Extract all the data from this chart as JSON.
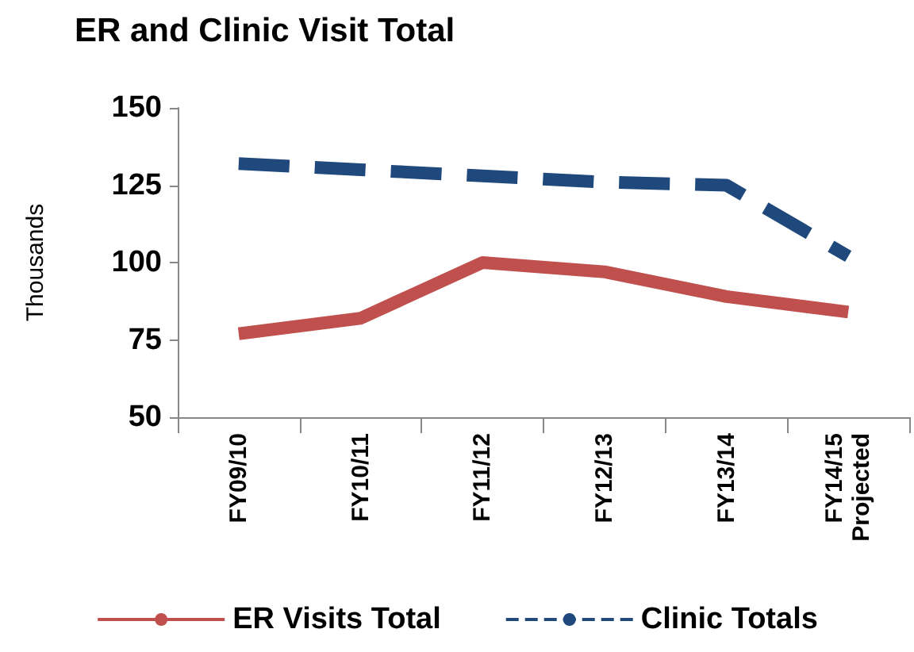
{
  "chart_data": {
    "type": "line",
    "title": "ER and Clinic Visit Total",
    "ylabel": "Thousands",
    "categories": [
      "FY09/10",
      "FY10/11",
      "FY11/12",
      "FY12/13",
      "FY13/14",
      "FY14/15\nProjected"
    ],
    "series": [
      {
        "name": "ER Visits Total",
        "color": "#c0504d",
        "line_style": "solid",
        "values": [
          77,
          82,
          100,
          97,
          89,
          84
        ]
      },
      {
        "name": "Clinic Totals",
        "color": "#1f497d",
        "line_style": "dashed",
        "values": [
          132,
          130,
          128,
          126,
          125,
          102
        ]
      }
    ],
    "ylim": [
      50,
      150
    ],
    "yticks": [
      50,
      75,
      100,
      125,
      150
    ],
    "grid": false,
    "legend": "bottom",
    "marker": "none"
  }
}
